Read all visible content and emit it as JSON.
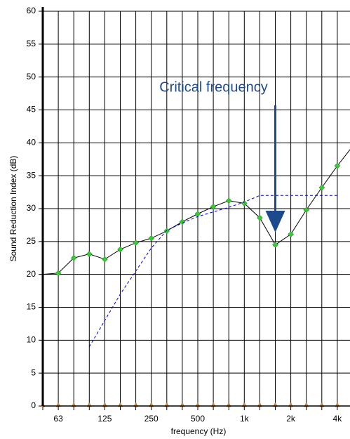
{
  "chart_data": {
    "type": "line",
    "annotation": "Critical frequency",
    "xlabel": "frequency (Hz)",
    "ylabel": "Sound Reduction Index (dB)",
    "categories": [
      null,
      "63",
      null,
      null,
      "125",
      null,
      null,
      "250",
      null,
      null,
      "500",
      null,
      null,
      "1k",
      null,
      null,
      "2k",
      null,
      null,
      "4k",
      null
    ],
    "series": [
      {
        "color": "#000000",
        "marker_color": "#33cc33",
        "style": "solid",
        "values": [
          20,
          20.2,
          22.5,
          23.1,
          22.3,
          23.8,
          24.8,
          25.5,
          26.6,
          28,
          29.2,
          30.3,
          31.2,
          30.8,
          28.6,
          24.5,
          26.1,
          29.8,
          33.2,
          36.5,
          39.5
        ]
      },
      {
        "color": "#0000cc",
        "style": "dashed",
        "values": [
          null,
          null,
          null,
          9,
          13,
          17,
          20.5,
          24,
          26.7,
          27.8,
          28.8,
          29.5,
          30.2,
          31,
          32,
          32,
          32,
          32,
          32,
          32,
          null
        ]
      }
    ],
    "ylim": [
      0,
      60
    ],
    "yticks": [
      0,
      5,
      10,
      15,
      20,
      25,
      30,
      35,
      40,
      45,
      50,
      55,
      60
    ],
    "grid": true
  }
}
